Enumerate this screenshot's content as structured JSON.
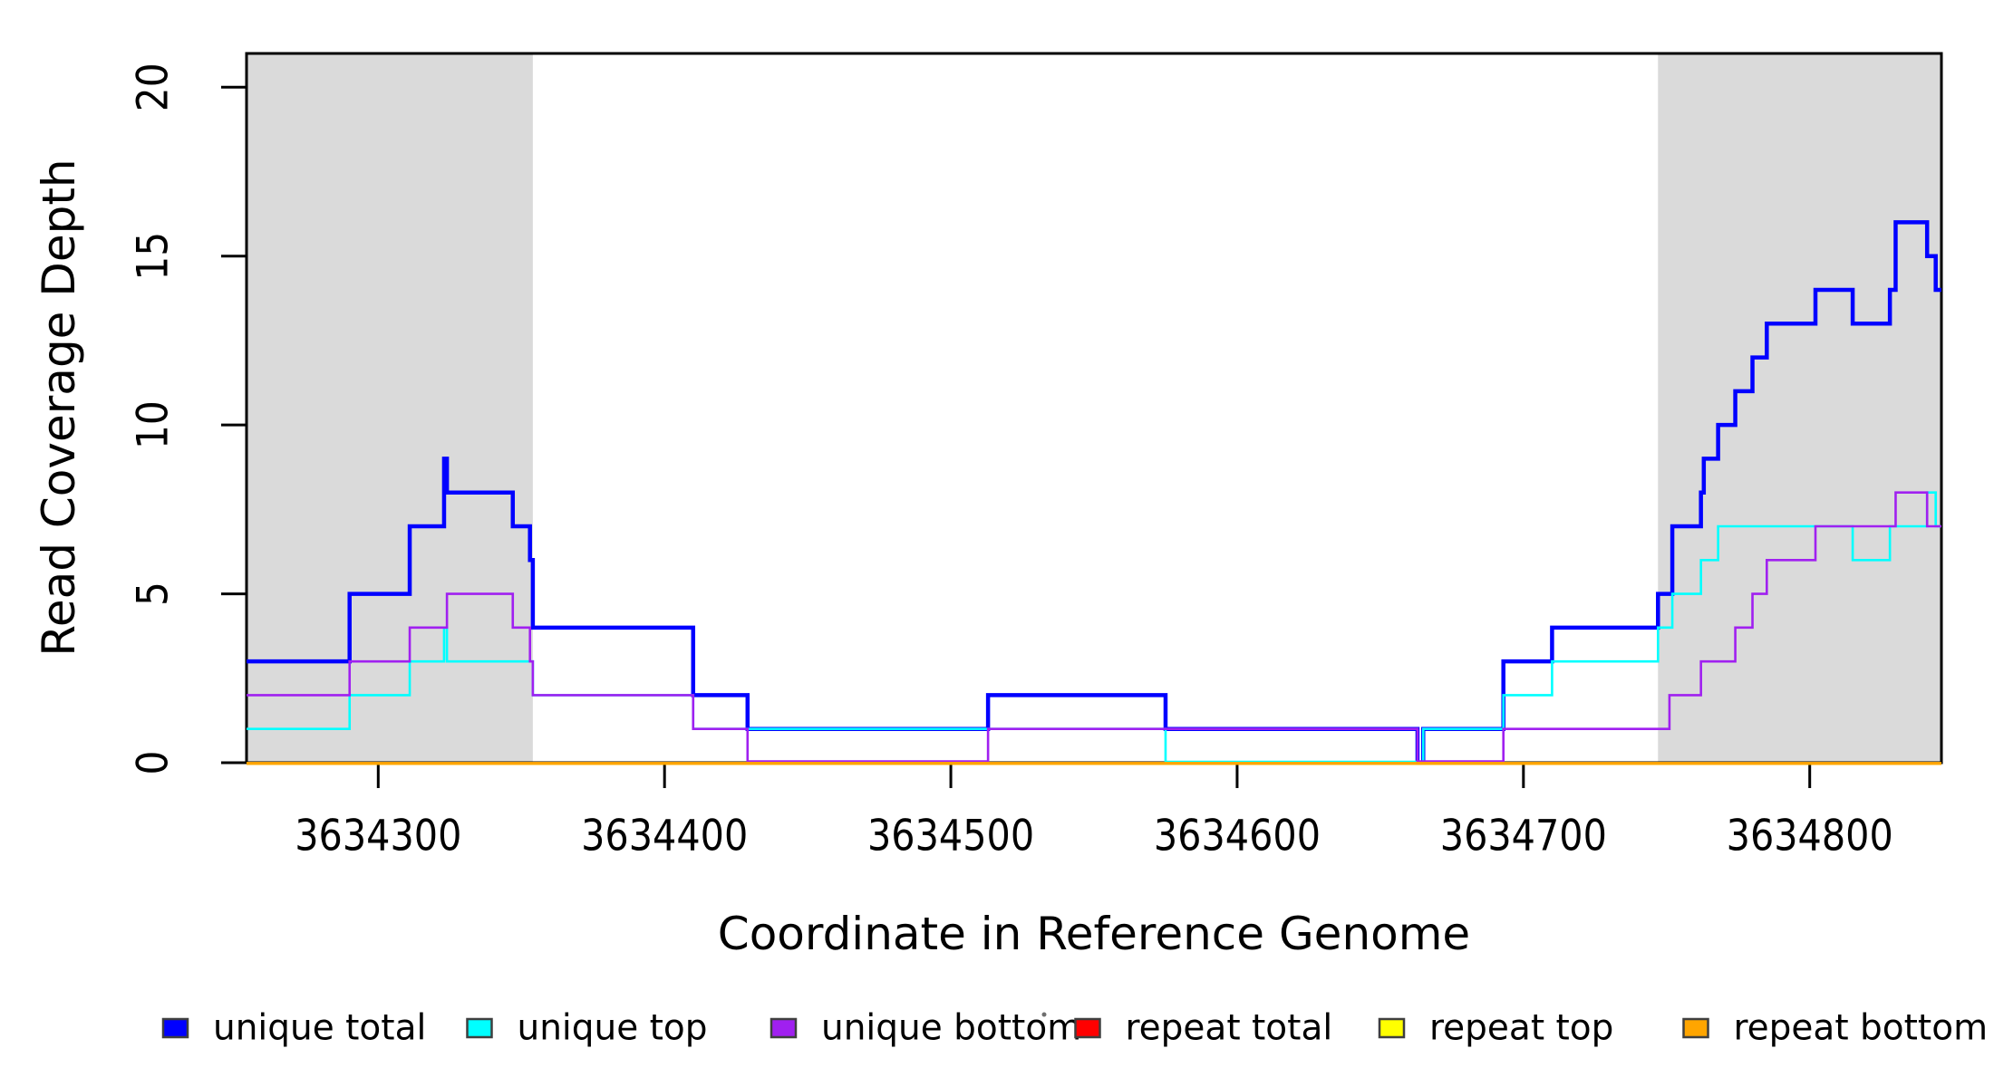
{
  "chart_data": {
    "type": "line",
    "subtype": "step-coverage",
    "title": "",
    "xlabel": "Coordinate in Reference Genome",
    "ylabel": "Read Coverage Depth",
    "xlim": [
      3634254,
      3634846
    ],
    "ylim": [
      0,
      21
    ],
    "x_ticks": [
      3634300,
      3634400,
      3634500,
      3634600,
      3634700,
      3634800
    ],
    "x_tick_labels": [
      "3634300",
      "3634400",
      "3634500",
      "3634600",
      "3634700",
      "3634800"
    ],
    "y_ticks": [
      0,
      5,
      10,
      15,
      20
    ],
    "y_tick_labels": [
      "0",
      "5",
      "10",
      "15",
      "20"
    ],
    "grid": false,
    "shade_color": "#DADADA",
    "shaded_regions": [
      {
        "from": 3634254,
        "to": 3634354
      },
      {
        "from": 3634747,
        "to": 3634846
      }
    ],
    "legend_position": "bottom",
    "series": [
      {
        "name": "unique total",
        "color": "#0000FF",
        "steps": [
          [
            3634254,
            3
          ],
          [
            3634290,
            5
          ],
          [
            3634311,
            7
          ],
          [
            3634323,
            9
          ],
          [
            3634324,
            8
          ],
          [
            3634347,
            7
          ],
          [
            3634353,
            6
          ],
          [
            3634354,
            4
          ],
          [
            3634410,
            2
          ],
          [
            3634429,
            1
          ],
          [
            3634513,
            2
          ],
          [
            3634575,
            1
          ],
          [
            3634663,
            0
          ],
          [
            3634665,
            1
          ],
          [
            3634693,
            3
          ],
          [
            3634710,
            4
          ],
          [
            3634747,
            5
          ],
          [
            3634752,
            7
          ],
          [
            3634762,
            8
          ],
          [
            3634763,
            9
          ],
          [
            3634768,
            10
          ],
          [
            3634774,
            11
          ],
          [
            3634780,
            12
          ],
          [
            3634785,
            13
          ],
          [
            3634802,
            14
          ],
          [
            3634815,
            13
          ],
          [
            3634828,
            14
          ],
          [
            3634830,
            16
          ],
          [
            3634841,
            15
          ],
          [
            3634844,
            14
          ]
        ],
        "end": 3634846
      },
      {
        "name": "unique top",
        "color": "#00FFFF",
        "steps": [
          [
            3634254,
            1
          ],
          [
            3634290,
            2
          ],
          [
            3634311,
            3
          ],
          [
            3634323,
            4
          ],
          [
            3634324,
            3
          ],
          [
            3634354,
            2
          ],
          [
            3634410,
            1
          ],
          [
            3634575,
            0
          ],
          [
            3634665,
            1
          ],
          [
            3634693,
            2
          ],
          [
            3634710,
            3
          ],
          [
            3634747,
            4
          ],
          [
            3634752,
            5
          ],
          [
            3634762,
            6
          ],
          [
            3634768,
            7
          ],
          [
            3634815,
            6
          ],
          [
            3634828,
            7
          ],
          [
            3634841,
            8
          ],
          [
            3634844,
            7
          ]
        ],
        "end": 3634846
      },
      {
        "name": "unique bottom",
        "color": "#A020F0",
        "steps": [
          [
            3634254,
            2
          ],
          [
            3634290,
            3
          ],
          [
            3634311,
            4
          ],
          [
            3634324,
            5
          ],
          [
            3634347,
            4
          ],
          [
            3634353,
            3
          ],
          [
            3634354,
            2
          ],
          [
            3634410,
            1
          ],
          [
            3634429,
            0
          ],
          [
            3634513,
            1
          ],
          [
            3634663,
            0
          ],
          [
            3634693,
            1
          ],
          [
            3634751,
            2
          ],
          [
            3634762,
            3
          ],
          [
            3634774,
            4
          ],
          [
            3634780,
            5
          ],
          [
            3634785,
            6
          ],
          [
            3634802,
            7
          ],
          [
            3634830,
            8
          ],
          [
            3634841,
            7
          ]
        ],
        "end": 3634846
      },
      {
        "name": "repeat total",
        "color": "#FF0000",
        "steps": [
          [
            3634254,
            0
          ]
        ],
        "end": 3634846
      },
      {
        "name": "repeat top",
        "color": "#FFFF00",
        "steps": [
          [
            3634254,
            0
          ]
        ],
        "end": 3634846
      },
      {
        "name": "repeat bottom",
        "color": "#FFA500",
        "steps": [
          [
            3634254,
            0
          ]
        ],
        "end": 3634846
      }
    ]
  }
}
